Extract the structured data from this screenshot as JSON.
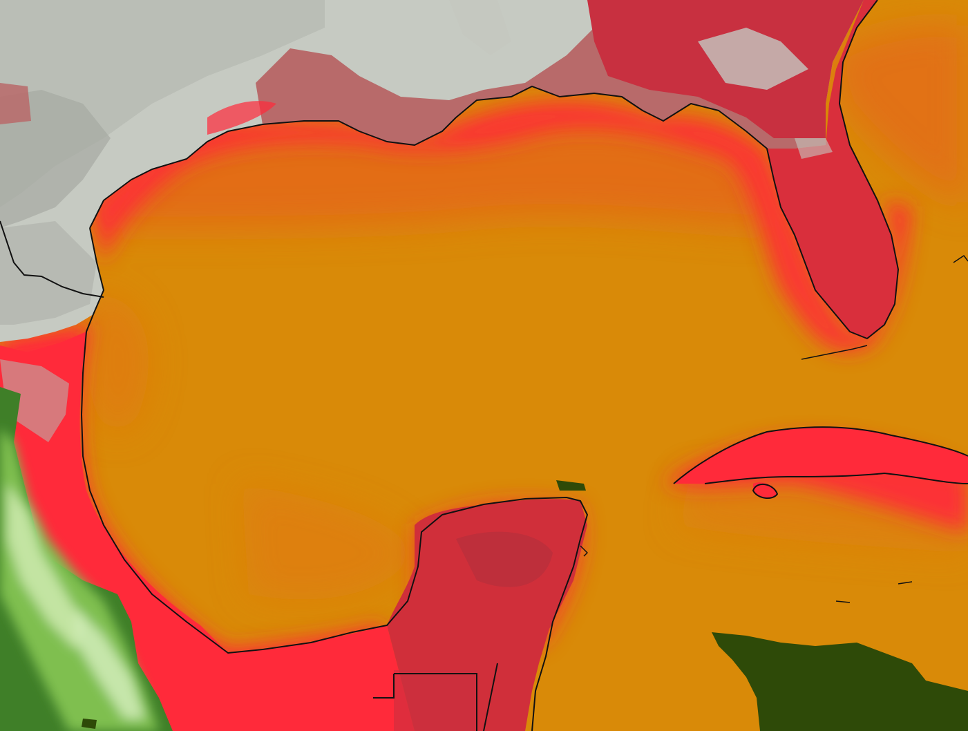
{
  "map": {
    "kind": "sea-surface-temperature-satellite-map",
    "colors": {
      "ocean_warm": "#d98a08",
      "ocean_warm_dark": "#e5741a",
      "shelf_hot": "#ff2a3a",
      "coast_glow": "#f43a2e",
      "land_red": "#d92f3c",
      "land_dark_red": "#b92f3c",
      "land_pink": "#b86a6a",
      "land_gray_light": "#c8ccc4",
      "land_gray": "#a6a9a3",
      "vegetation_green": "#5f9a3a",
      "vegetation_light": "#cfeab0",
      "no_data_green": "#2e4a08",
      "coastline": "#111111"
    }
  }
}
